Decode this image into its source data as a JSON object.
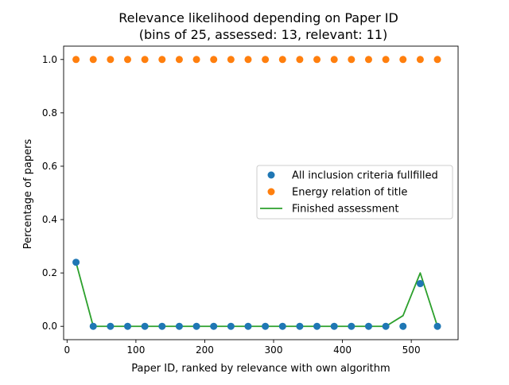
{
  "chart_data": {
    "type": "scatter",
    "title": "Relevance likelihood depending on Paper ID",
    "subtitle": "(bins of 25, assessed: 13, relevant: 11)",
    "xlabel": "Paper ID, ranked by relevance with own algorithm",
    "ylabel": "Percentage of papers",
    "xlim": [
      -5,
      568
    ],
    "ylim": [
      -0.05,
      1.05
    ],
    "x_ticks": [
      0,
      100,
      200,
      300,
      400,
      500
    ],
    "y_ticks": [
      0.0,
      0.2,
      0.4,
      0.6,
      0.8,
      1.0
    ],
    "x_tick_labels": [
      "0",
      "100",
      "200",
      "300",
      "400",
      "500"
    ],
    "y_tick_labels": [
      "0.0",
      "0.2",
      "0.4",
      "0.6",
      "0.8",
      "1.0"
    ],
    "grid": false,
    "legend_position": "center-right",
    "x": [
      13,
      38,
      63,
      88,
      113,
      138,
      163,
      188,
      213,
      238,
      263,
      288,
      313,
      338,
      363,
      388,
      413,
      438,
      463,
      488,
      513,
      538
    ],
    "series": [
      {
        "name": "All inclusion criteria fullfilled",
        "kind": "scatter",
        "color": "#1f77b4",
        "values": [
          0.24,
          0,
          0,
          0,
          0,
          0,
          0,
          0,
          0,
          0,
          0,
          0,
          0,
          0,
          0,
          0,
          0,
          0,
          0,
          0,
          0.16,
          0
        ]
      },
      {
        "name": "Energy relation of title",
        "kind": "scatter",
        "color": "#ff7f0e",
        "values": [
          1,
          1,
          1,
          1,
          1,
          1,
          1,
          1,
          1,
          1,
          1,
          1,
          1,
          1,
          1,
          1,
          1,
          1,
          1,
          1,
          1,
          1
        ]
      },
      {
        "name": "Finished assessment",
        "kind": "line",
        "color": "#2ca02c",
        "values": [
          0.24,
          0,
          0,
          0,
          0,
          0,
          0,
          0,
          0,
          0,
          0,
          0,
          0,
          0,
          0,
          0,
          0,
          0,
          0,
          0.04,
          0.2,
          0
        ]
      }
    ]
  }
}
